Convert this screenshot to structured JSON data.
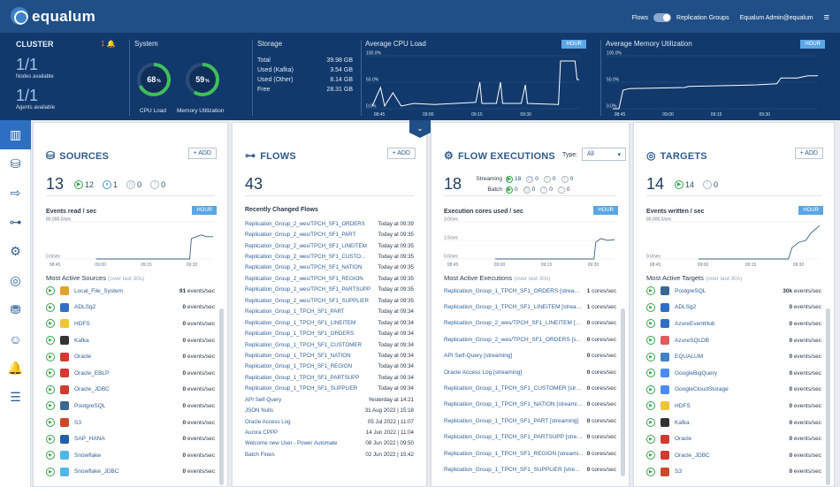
{
  "app": {
    "logo": "equalum"
  },
  "topbar": {
    "flows_label": "Flows",
    "replication_label": "Replication Groups",
    "user": "Equalum Admin@equalum"
  },
  "cluster": {
    "title": "CLUSTER",
    "alerts": "1",
    "nodes": "1/1",
    "nodes_label": "Nodes available",
    "agents": "1/1",
    "agents_label": "Agents available"
  },
  "system": {
    "title": "System",
    "cpu_value": "68",
    "cpu_unit": "%",
    "cpu_label": "CPU Load",
    "cpu_fraction": 0.68,
    "mem_value": "59",
    "mem_unit": "%",
    "mem_label": "Memory Utilization",
    "mem_fraction": 0.59
  },
  "storage": {
    "title": "Storage",
    "rows": [
      {
        "label": "Total",
        "value": "39.98 GB"
      },
      {
        "label": "Used (Kafka)",
        "value": "3.54 GB"
      },
      {
        "label": "Used (Other)",
        "value": "8.14 GB"
      },
      {
        "label": "Free",
        "value": "28.31 GB"
      }
    ]
  },
  "cpu_chart": {
    "title": "Average CPU Load",
    "button": "HOUR",
    "y_labels": [
      "100.0%",
      "50.0%",
      "0.0%"
    ],
    "x_labels": [
      "08:45",
      "09:00",
      "09:15",
      "09:30"
    ]
  },
  "mem_chart": {
    "title": "Average Memory Utilization",
    "button": "HOUR",
    "y_labels": [
      "100.0%",
      "50.0%",
      "0.0%"
    ],
    "x_labels": [
      "08:45",
      "09:00",
      "09:15",
      "09:30"
    ]
  },
  "sources": {
    "title": "SOURCES",
    "add": "+ ADD",
    "total": "13",
    "counts": [
      {
        "kind": "g",
        "sym": "▶",
        "value": "12"
      },
      {
        "kind": "b",
        "sym": "⏸",
        "value": "1"
      },
      {
        "kind": "",
        "sym": "◷",
        "value": "0"
      },
      {
        "kind": "",
        "sym": "!",
        "value": "0"
      }
    ],
    "chart_title": "Events read / sec",
    "button": "HOUR",
    "y_labels": [
      "80,000.0/sec",
      "0.0/sec"
    ],
    "x_labels": [
      "08:45",
      "09:00",
      "09:15",
      "09:30"
    ],
    "list_title": "Most Active Sources",
    "list_note": "(over last 30s)",
    "items": [
      {
        "name": "Local_File_System",
        "value": "91",
        "unit": "events/sec",
        "color": "#e0a32a"
      },
      {
        "name": "ADLSg2",
        "value": "0",
        "unit": "events/sec",
        "color": "#2f6fc2"
      },
      {
        "name": "HDFS",
        "value": "0",
        "unit": "events/sec",
        "color": "#f0c33c"
      },
      {
        "name": "Kafka",
        "value": "0",
        "unit": "events/sec",
        "color": "#333333"
      },
      {
        "name": "Oracle",
        "value": "0",
        "unit": "events/sec",
        "color": "#d23a2e"
      },
      {
        "name": "Oracle_EBLP",
        "value": "0",
        "unit": "events/sec",
        "color": "#d23a2e"
      },
      {
        "name": "Oracle_JDBC",
        "value": "0",
        "unit": "events/sec",
        "color": "#d23a2e"
      },
      {
        "name": "PostgreSQL",
        "value": "0",
        "unit": "events/sec",
        "color": "#3a6894"
      },
      {
        "name": "S3",
        "value": "0",
        "unit": "events/sec",
        "color": "#c94a2b"
      },
      {
        "name": "SAP_HANA",
        "value": "0",
        "unit": "events/sec",
        "color": "#1d5fa8"
      },
      {
        "name": "Snowflake",
        "value": "0",
        "unit": "events/sec",
        "color": "#4fb7e8"
      },
      {
        "name": "Snowflake_JDBC",
        "value": "0",
        "unit": "events/sec",
        "color": "#4fb7e8"
      }
    ]
  },
  "flows": {
    "title": "FLOWS",
    "add": "+ ADD",
    "total": "43",
    "list_title": "Recently Changed Flows",
    "items": [
      {
        "name": "Replication_Group_2_wes/TPCH_SF1_ORDERS",
        "time": "Today at 09:39"
      },
      {
        "name": "Replication_Group_2_wes/TPCH_SF1_PART",
        "time": "Today at 09:35"
      },
      {
        "name": "Replication_Group_2_wes/TPCH_SF1_LINEITEM",
        "time": "Today at 09:35"
      },
      {
        "name": "Replication_Group_2_wes/TPCH_SF1_CUSTO...",
        "time": "Today at 09:35"
      },
      {
        "name": "Replication_Group_2_wes/TPCH_SF1_NATION",
        "time": "Today at 09:35"
      },
      {
        "name": "Replication_Group_2_wes/TPCH_SF1_REGION",
        "time": "Today at 09:35"
      },
      {
        "name": "Replication_Group_2_wes/TPCH_SF1_PARTSUPP",
        "time": "Today at 09:35"
      },
      {
        "name": "Replication_Group_2_wes/TPCH_SF1_SUPPLIER",
        "time": "Today at 09:35"
      },
      {
        "name": "Replication_Group_1_TPCH_SF1_PART",
        "time": "Today at 09:34"
      },
      {
        "name": "Replication_Group_1_TPCH_SF1_LINEITEM",
        "time": "Today at 09:34"
      },
      {
        "name": "Replication_Group_1_TPCH_SF1_ORDERS",
        "time": "Today at 09:34"
      },
      {
        "name": "Replication_Group_1_TPCH_SF1_CUSTOMER",
        "time": "Today at 09:34"
      },
      {
        "name": "Replication_Group_1_TPCH_SF1_NATION",
        "time": "Today at 09:34"
      },
      {
        "name": "Replication_Group_1_TPCH_SF1_REGION",
        "time": "Today at 09:34"
      },
      {
        "name": "Replication_Group_1_TPCH_SF1_PARTSUPP",
        "time": "Today at 09:34"
      },
      {
        "name": "Replication_Group_1_TPCH_SF1_SUPPLIER",
        "time": "Today at 09:34"
      },
      {
        "name": "API Self-Query",
        "time": "Yesterday at 14:21"
      },
      {
        "name": "JSON Nulls",
        "time": "31 Aug 2022 | 15:18"
      },
      {
        "name": "Oracle Access Log",
        "time": "05 Jul 2022 | 11:07"
      },
      {
        "name": "Aurora CPPP",
        "time": "14 Jun 2022 | 11:04"
      },
      {
        "name": "Welcome new User - Power Automate",
        "time": "08 Jun 2022 | 09:50"
      },
      {
        "name": "Batch Flows",
        "time": "02 Jun 2022 | 15:42"
      }
    ]
  },
  "executions": {
    "title": "FLOW EXECUTIONS",
    "type_label": "Type:",
    "type_value": "All",
    "total": "18",
    "streaming_label": "Streaming",
    "streaming_counts": [
      "18",
      "0",
      "0",
      "0"
    ],
    "batch_label": "Batch",
    "batch_counts": [
      "0",
      "0",
      "0",
      "0"
    ],
    "chart_title": "Execution cores used / sec",
    "button": "HOUR",
    "y_labels": [
      "3.0/sec",
      "1.5/sec",
      "0.0/sec"
    ],
    "x_labels": [
      "08:45",
      "09:00",
      "09:15",
      "09:30"
    ],
    "list_title": "Most Active Executions",
    "list_note": "(over last 30s)",
    "items": [
      {
        "name": "Replication_Group_1_TPCH_SF1_ORDERS [streaming]",
        "value": "1",
        "unit": "cores/sec"
      },
      {
        "name": "Replication_Group_1_TPCH_SF1_LINEITEM [stream...",
        "value": "1",
        "unit": "cores/sec"
      },
      {
        "name": "Replication_Group_2_wes/TPCH_SF1_LINEITEM [st...",
        "value": "0",
        "unit": "cores/sec"
      },
      {
        "name": "Replication_Group_2_wes/TPCH_SF1_ORDERS [str...",
        "value": "0",
        "unit": "cores/sec"
      },
      {
        "name": "API Self-Query [streaming]",
        "value": "0",
        "unit": "cores/sec"
      },
      {
        "name": "Oracle Access Log [streaming]",
        "value": "0",
        "unit": "cores/sec"
      },
      {
        "name": "Replication_Group_1_TPCH_SF1_CUSTOMER [stre...",
        "value": "0",
        "unit": "cores/sec"
      },
      {
        "name": "Replication_Group_1_TPCH_SF1_NATION [streaming]",
        "value": "0",
        "unit": "cores/sec"
      },
      {
        "name": "Replication_Group_1_TPCH_SF1_PART [streaming]",
        "value": "0",
        "unit": "cores/sec"
      },
      {
        "name": "Replication_Group_1_TPCH_SF1_PARTSUPP [strea...",
        "value": "0",
        "unit": "cores/sec"
      },
      {
        "name": "Replication_Group_1_TPCH_SF1_REGION [streami...",
        "value": "0",
        "unit": "cores/sec"
      },
      {
        "name": "Replication_Group_1_TPCH_SF1_SUPPLIER [stre...",
        "value": "0",
        "unit": "cores/sec"
      }
    ]
  },
  "targets": {
    "title": "TARGETS",
    "add": "+ ADD",
    "total": "14",
    "counts": [
      {
        "kind": "g",
        "sym": "▶",
        "value": "14"
      },
      {
        "kind": "",
        "sym": "!",
        "value": "0"
      }
    ],
    "chart_title": "Events written / sec",
    "button": "HOUR",
    "y_labels": [
      "80,000.0/sec",
      "0.0/sec"
    ],
    "x_labels": [
      "08:45",
      "09:00",
      "09:15",
      "09:30"
    ],
    "list_title": "Most Active Targets",
    "list_note": "(over last 30s)",
    "items": [
      {
        "name": "PostgreSQL",
        "value": "30k",
        "unit": "events/sec",
        "color": "#3a6894"
      },
      {
        "name": "ADLSg2",
        "value": "0",
        "unit": "events/sec",
        "color": "#2f6fc2"
      },
      {
        "name": "AzureEventHub",
        "value": "0",
        "unit": "events/sec",
        "color": "#2f6fc2"
      },
      {
        "name": "AzureSQLDB",
        "value": "0",
        "unit": "events/sec",
        "color": "#e05b5b"
      },
      {
        "name": "EQUALUM",
        "value": "0",
        "unit": "events/sec",
        "color": "#3f82c7"
      },
      {
        "name": "GoogleBigQuery",
        "value": "0",
        "unit": "events/sec",
        "color": "#4c8bf5"
      },
      {
        "name": "GoogleCloudStorage",
        "value": "0",
        "unit": "events/sec",
        "color": "#4c8bf5"
      },
      {
        "name": "HDFS",
        "value": "0",
        "unit": "events/sec",
        "color": "#f0c33c"
      },
      {
        "name": "Kafka",
        "value": "0",
        "unit": "events/sec",
        "color": "#333333"
      },
      {
        "name": "Oracle",
        "value": "0",
        "unit": "events/sec",
        "color": "#d23a2e"
      },
      {
        "name": "Oracle_JDBC",
        "value": "0",
        "unit": "events/sec",
        "color": "#d23a2e"
      },
      {
        "name": "S3",
        "value": "0",
        "unit": "events/sec",
        "color": "#c94a2b"
      }
    ]
  }
}
